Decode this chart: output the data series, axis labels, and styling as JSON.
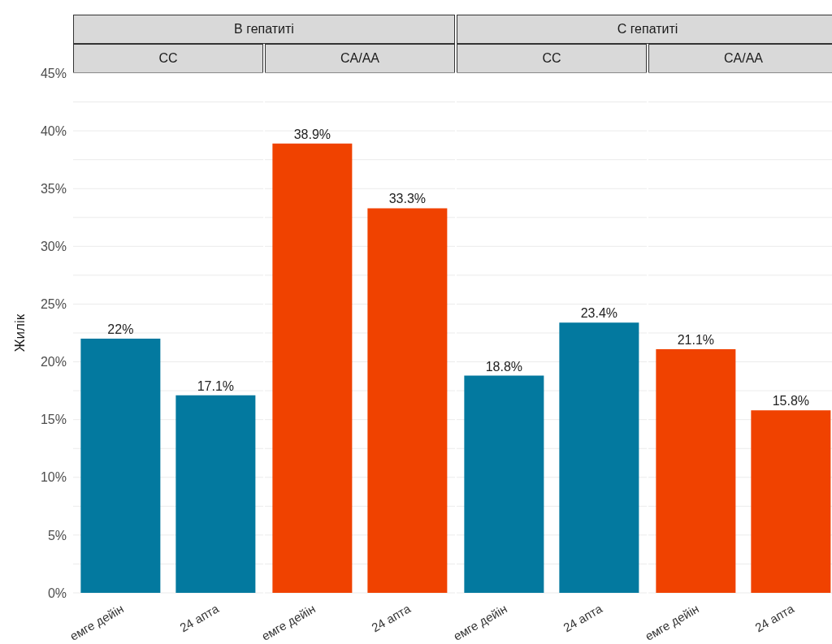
{
  "chart_data": [
    {
      "type": "bar",
      "subtitle": "В гепатиті",
      "title": "CC",
      "ylabel": "Жилік",
      "categories": [
        "емге дейін",
        "24 апта"
      ],
      "values": [
        22,
        17.1
      ],
      "value_labels": [
        "22%",
        "17.1%"
      ],
      "color": "#03799f",
      "ylim": [
        0,
        45
      ],
      "yticks": [
        {
          "value": 0,
          "label": "0%"
        },
        {
          "value": 2.5,
          "label": null
        },
        {
          "value": 5,
          "label": "5%"
        },
        {
          "value": 7.5,
          "label": null
        },
        {
          "value": 10,
          "label": "10%"
        },
        {
          "value": 12.5,
          "label": null
        },
        {
          "value": 15,
          "label": "15%"
        },
        {
          "value": 17.5,
          "label": null
        },
        {
          "value": 20,
          "label": "20%"
        },
        {
          "value": 22.5,
          "label": null
        },
        {
          "value": 25,
          "label": "25%"
        },
        {
          "value": 27.5,
          "label": null
        },
        {
          "value": 30,
          "label": "30%"
        },
        {
          "value": 32.5,
          "label": null
        },
        {
          "value": 35,
          "label": "35%"
        },
        {
          "value": 37.5,
          "label": null
        },
        {
          "value": 40,
          "label": "40%"
        },
        {
          "value": 42.5,
          "label": null
        },
        {
          "value": 45,
          "label": "45%"
        }
      ],
      "grid": "y"
    },
    {
      "type": "bar",
      "title": "CA/AA",
      "categories": [
        "емге дейін",
        "24 апта"
      ],
      "values": [
        38.9,
        33.3
      ],
      "value_labels": [
        "38.9%",
        "33.3%"
      ],
      "color": "#f04200",
      "ylim": [
        0,
        45
      ],
      "yticks": [
        0,
        2.5,
        5,
        7.5,
        10,
        12.5,
        15,
        17.5,
        20,
        22.5,
        25,
        27.5,
        30,
        32.5,
        35,
        37.5,
        40,
        42.5,
        45
      ],
      "grid": "y",
      "tick_labels": "x"
    },
    {
      "type": "bar",
      "subtitle": "С гепатиті",
      "title": "CC",
      "categories": [
        "емге дейін",
        "24 апта"
      ],
      "values": [
        18.8,
        23.4
      ],
      "value_labels": [
        "18.8%",
        "23.4%"
      ],
      "color": "#03799f",
      "ylim": [
        0,
        45
      ],
      "yticks": [
        0,
        2.5,
        5,
        7.5,
        10,
        12.5,
        15,
        17.5,
        20,
        22.5,
        25,
        27.5,
        30,
        32.5,
        35,
        37.5,
        40,
        42.5,
        45
      ],
      "grid": "y",
      "tick_labels": "x"
    },
    {
      "type": "bar",
      "title": "CA/AA",
      "categories": [
        "емге дейін",
        "24 апта"
      ],
      "values": [
        21.1,
        15.8
      ],
      "value_labels": [
        "21.1%",
        "15.8%"
      ],
      "color": "#f04200",
      "ylim": [
        0,
        45
      ],
      "yticks": [
        0,
        2.5,
        5,
        7.5,
        10,
        12.5,
        15,
        17.5,
        20,
        22.5,
        25,
        27.5,
        30,
        32.5,
        35,
        37.5,
        40,
        42.5,
        45
      ],
      "grid": "y",
      "tick_labels": "x"
    }
  ]
}
